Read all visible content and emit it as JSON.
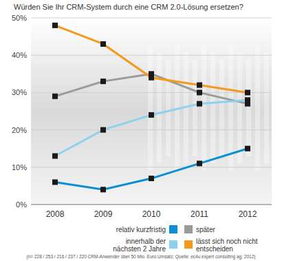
{
  "chart_data": {
    "type": "line",
    "title": "Würden Sie Ihr CRM-System durch eine CRM 2.0-Lösung ersetzen?",
    "annotations": [
      "(n= 228 / 253 / 216 / 237 / 220 CRM-Anwender über 50 Mio. Euro Umsatz; Quelle: ec4u expert consulting ag; 2012)"
    ],
    "categories": [
      "2008",
      "2009",
      "2010",
      "2011",
      "2012"
    ],
    "series": [
      {
        "name": "relativ kurzfristig",
        "color": "#0a8fd2",
        "values": [
          6,
          4,
          7,
          11,
          15
        ]
      },
      {
        "name": "später",
        "color": "#9a9a9a",
        "values": [
          29,
          33,
          35,
          30,
          27
        ]
      },
      {
        "name": "innerhalb der nächsten 2 Jahre",
        "color": "#8ed1ef",
        "values": [
          13,
          20,
          24,
          27,
          28
        ]
      },
      {
        "name": "lässt sich noch nicht entscheiden",
        "color": "#f39a1e",
        "values": [
          48,
          43,
          34,
          32,
          30
        ]
      }
    ],
    "ylim": [
      0,
      50
    ],
    "yticks": [
      {
        "value": 0,
        "label": "0%"
      },
      {
        "value": 10,
        "label": "10%"
      },
      {
        "value": 20,
        "label": "20%"
      },
      {
        "value": 30,
        "label": "30%"
      },
      {
        "value": 40,
        "label": "40%"
      },
      {
        "value": 50,
        "label": "50%"
      }
    ],
    "grid": true,
    "marker": "square",
    "legend": "bottom"
  }
}
